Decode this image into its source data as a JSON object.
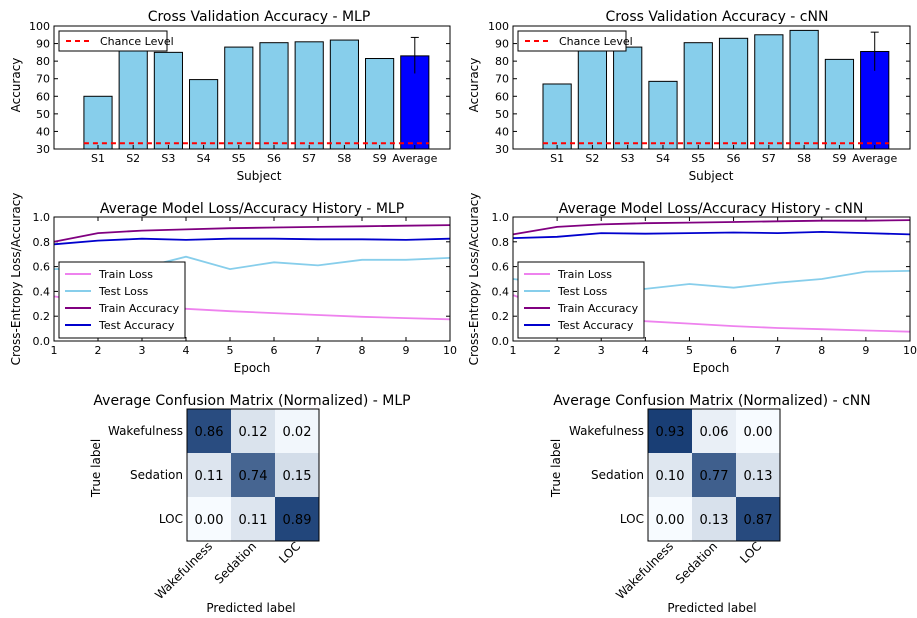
{
  "chart_data": [
    {
      "type": "bar",
      "title": "Cross Validation Accuracy - MLP",
      "xlabel": "Subject",
      "ylabel": "Accuracy",
      "ylim": [
        30,
        100
      ],
      "yticks": [
        30,
        40,
        50,
        60,
        70,
        80,
        90,
        100
      ],
      "categories": [
        "S1",
        "S2",
        "S3",
        "S4",
        "S5",
        "S6",
        "S7",
        "S8",
        "S9",
        "Average"
      ],
      "values": [
        60,
        86,
        85,
        69.5,
        88,
        90.5,
        91,
        92,
        81.5,
        83
      ],
      "error": {
        "category": "Average",
        "low": 73,
        "high": 93.5
      },
      "bar_color": "#87ceeb",
      "highlight_color": "#0000ff",
      "chance_level": {
        "label": "Chance Level",
        "value": 33.3,
        "color": "#ff0000"
      },
      "legend_position": "upper-left"
    },
    {
      "type": "bar",
      "title": "Cross Validation Accuracy - cNN",
      "xlabel": "Subject",
      "ylabel": "Accuracy",
      "ylim": [
        30,
        100
      ],
      "yticks": [
        30,
        40,
        50,
        60,
        70,
        80,
        90,
        100
      ],
      "categories": [
        "S1",
        "S2",
        "S3",
        "S4",
        "S5",
        "S6",
        "S7",
        "S8",
        "S9",
        "Average"
      ],
      "values": [
        67,
        86,
        88,
        68.5,
        90.5,
        93,
        95,
        97.5,
        81,
        85.5
      ],
      "error": {
        "category": "Average",
        "low": 74.5,
        "high": 96.5
      },
      "bar_color": "#87ceeb",
      "highlight_color": "#0000ff",
      "chance_level": {
        "label": "Chance Level",
        "value": 33.3,
        "color": "#ff0000"
      },
      "legend_position": "upper-left"
    },
    {
      "type": "line",
      "title": "Average Model Loss/Accuracy History - MLP",
      "xlabel": "Epoch",
      "ylabel": "Cross-Entropy Loss/Accuracy",
      "xlim": [
        1,
        10
      ],
      "ylim": [
        0,
        1
      ],
      "xticks": [
        1,
        2,
        3,
        4,
        5,
        6,
        7,
        8,
        9,
        10
      ],
      "yticks": [
        "0.0",
        "0.2",
        "0.4",
        "0.6",
        "0.8",
        "1.0"
      ],
      "x": [
        1,
        2,
        3,
        4,
        5,
        6,
        7,
        8,
        9,
        10
      ],
      "series": [
        {
          "name": "Train Loss",
          "color": "#ee82ee",
          "values": [
            0.36,
            0.31,
            0.28,
            0.26,
            0.24,
            0.225,
            0.21,
            0.195,
            0.185,
            0.175
          ]
        },
        {
          "name": "Test Loss",
          "color": "#87ceeb",
          "values": [
            0.58,
            0.59,
            0.59,
            0.68,
            0.58,
            0.635,
            0.61,
            0.655,
            0.655,
            0.67
          ]
        },
        {
          "name": "Train Accuracy",
          "color": "#800080",
          "values": [
            0.8,
            0.87,
            0.89,
            0.9,
            0.91,
            0.915,
            0.92,
            0.925,
            0.93,
            0.935
          ]
        },
        {
          "name": "Test Accuracy",
          "color": "#0000cd",
          "values": [
            0.78,
            0.81,
            0.825,
            0.815,
            0.825,
            0.825,
            0.82,
            0.82,
            0.815,
            0.825
          ]
        }
      ],
      "legend_position": "lower-left"
    },
    {
      "type": "line",
      "title": "Average Model Loss/Accuracy History - cNN",
      "xlabel": "Epoch",
      "ylabel": "Cross-Entropy Loss/Accuracy",
      "xlim": [
        1,
        10
      ],
      "ylim": [
        0,
        1
      ],
      "xticks": [
        1,
        2,
        3,
        4,
        5,
        6,
        7,
        8,
        9,
        10
      ],
      "yticks": [
        "0.0",
        "0.2",
        "0.4",
        "0.6",
        "0.8",
        "1.0"
      ],
      "x": [
        1,
        2,
        3,
        4,
        5,
        6,
        7,
        8,
        9,
        10
      ],
      "series": [
        {
          "name": "Train Loss",
          "color": "#ee82ee",
          "values": [
            0.37,
            0.24,
            0.19,
            0.16,
            0.14,
            0.12,
            0.105,
            0.095,
            0.085,
            0.075
          ]
        },
        {
          "name": "Test Loss",
          "color": "#87ceeb",
          "values": [
            0.5,
            0.46,
            0.44,
            0.42,
            0.46,
            0.43,
            0.47,
            0.5,
            0.56,
            0.565
          ]
        },
        {
          "name": "Train Accuracy",
          "color": "#800080",
          "values": [
            0.86,
            0.92,
            0.94,
            0.95,
            0.955,
            0.96,
            0.965,
            0.97,
            0.97,
            0.975
          ]
        },
        {
          "name": "Test Accuracy",
          "color": "#0000cd",
          "values": [
            0.83,
            0.84,
            0.87,
            0.865,
            0.87,
            0.875,
            0.87,
            0.88,
            0.87,
            0.86
          ]
        }
      ],
      "legend_position": "lower-left"
    },
    {
      "type": "heatmap",
      "title": "Average Confusion Matrix (Normalized) - MLP",
      "xlabel": "Predicted label",
      "ylabel": "True label",
      "row_labels": [
        "Wakefulness",
        "Sedation",
        "LOC"
      ],
      "col_labels": [
        "Wakefulness",
        "Sedation",
        "LOC"
      ],
      "values": [
        [
          "0.86",
          "0.12",
          "0.02"
        ],
        [
          "0.11",
          "0.74",
          "0.15"
        ],
        [
          "0.00",
          "0.11",
          "0.89"
        ]
      ],
      "colormap": "Blues"
    },
    {
      "type": "heatmap",
      "title": "Average Confusion Matrix (Normalized) - cNN",
      "xlabel": "Predicted label",
      "ylabel": "True label",
      "row_labels": [
        "Wakefulness",
        "Sedation",
        "LOC"
      ],
      "col_labels": [
        "Wakefulness",
        "Sedation",
        "LOC"
      ],
      "values": [
        [
          "0.93",
          "0.06",
          "0.00"
        ],
        [
          "0.10",
          "0.77",
          "0.13"
        ],
        [
          "0.00",
          "0.13",
          "0.87"
        ]
      ],
      "colormap": "Blues"
    }
  ]
}
